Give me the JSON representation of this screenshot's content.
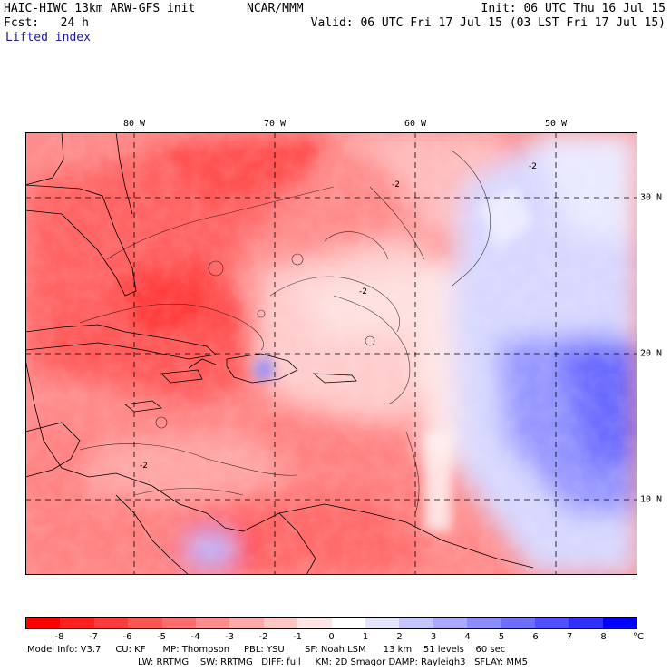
{
  "header": {
    "model": "HAIC-HIWC 13km ARW-GFS init",
    "org": "NCAR/MMM",
    "init": "Init: 06 UTC Thu 16 Jul 15",
    "fcst": "Fcst:   24 h",
    "valid": "Valid: 06 UTC Fri 17 Jul 15 (03 LST Fri 17 Jul 15)",
    "field": "Lifted index"
  },
  "lon_labels": [
    "80 W",
    "70 W",
    "60 W",
    "50 W"
  ],
  "lat_labels": [
    "30 N",
    "20 N",
    "10 N"
  ],
  "contour_label": "-2",
  "colorbar": {
    "ticks": [
      "-8",
      "-7",
      "-6",
      "-5",
      "-4",
      "-3",
      "-2",
      "-1",
      "0",
      "1",
      "2",
      "3",
      "4",
      "5",
      "6",
      "7",
      "8"
    ],
    "unit": "°C",
    "colors": [
      "#ff0000",
      "#ff2020",
      "#ff3c3c",
      "#ff5555",
      "#ff6e6e",
      "#ff8c8c",
      "#ffaaaa",
      "#ffc6c6",
      "#ffe4e4",
      "#ffffff",
      "#e4e4ff",
      "#c6c6ff",
      "#aaaaff",
      "#8c8cff",
      "#6e6eff",
      "#5050ff",
      "#3030ff",
      "#0000ff"
    ]
  },
  "model_info": {
    "line1": "Model Info: V3.7     CU: KF      MP: Thompson     PBL: YSU       SF: Noah LSM      13 km    51 levels    60 sec",
    "line2": "LW: RRTMG    SW: RRTMG   DIFF: full     KM: 2D Smagor DAMP: Rayleigh3   SFLAY: MM5"
  }
}
